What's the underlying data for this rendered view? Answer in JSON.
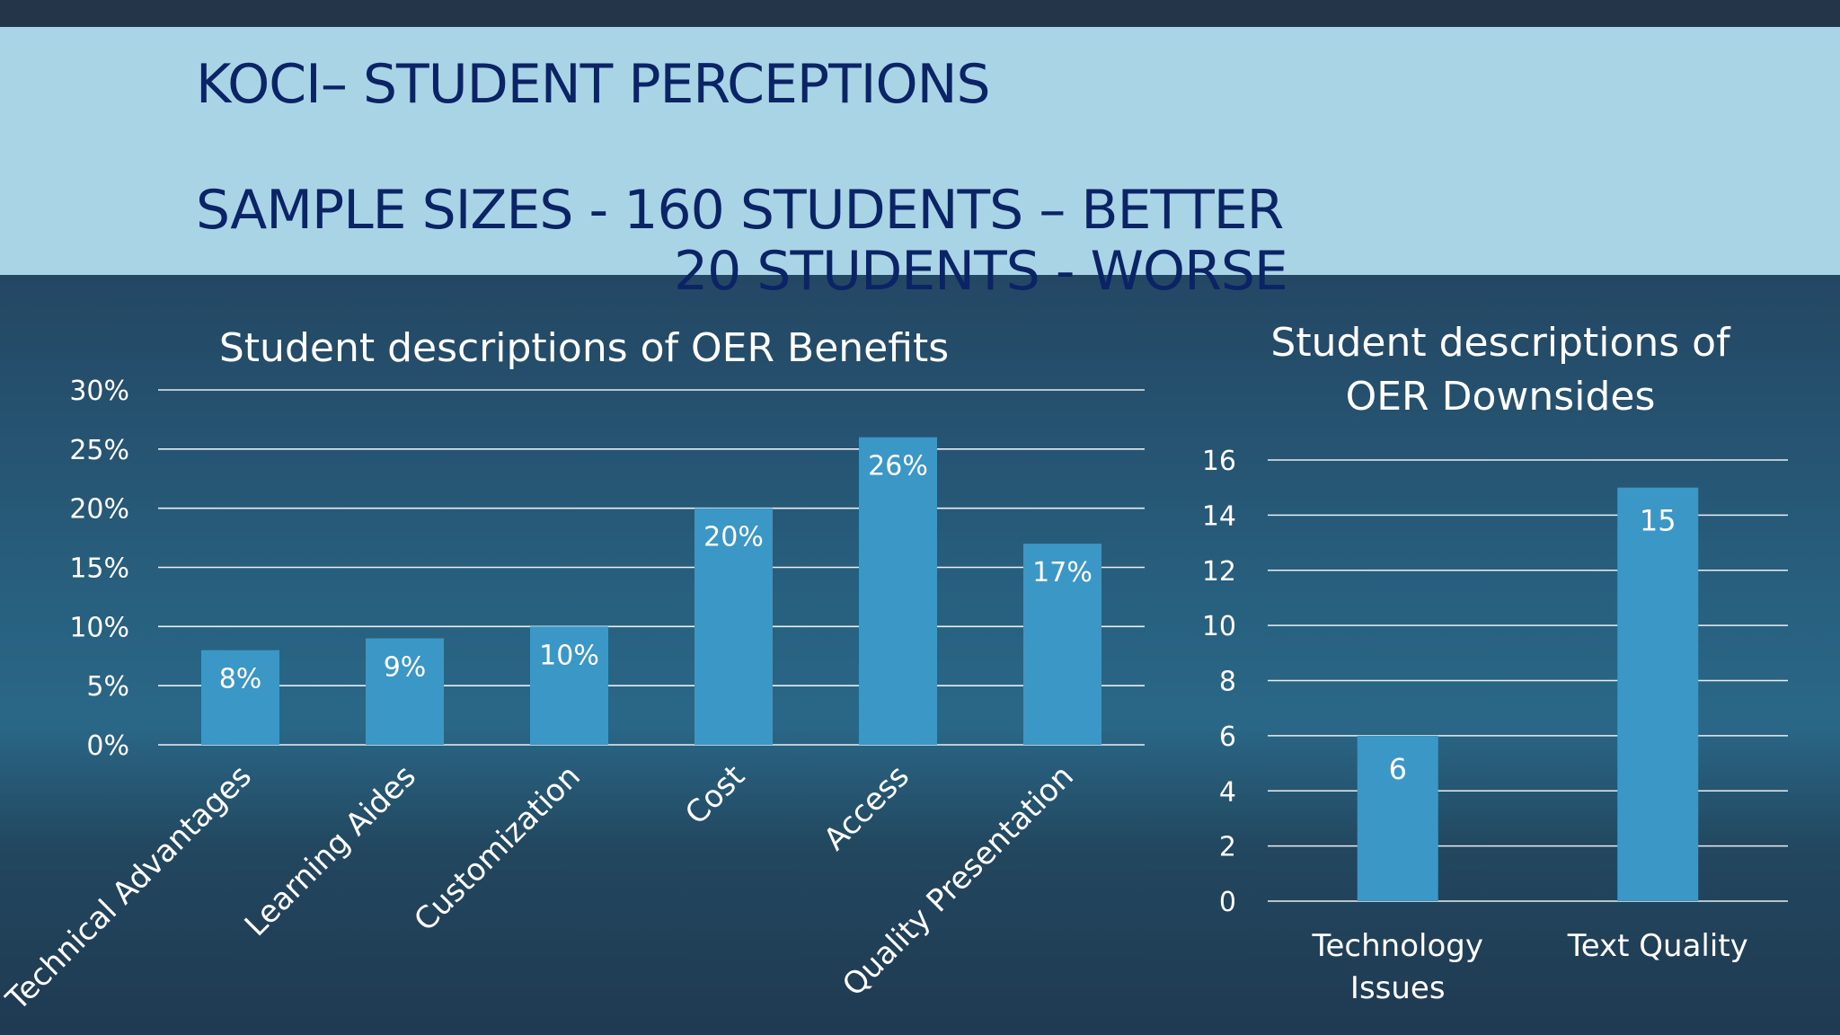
{
  "slide": {
    "title_line_1": "KOCI– STUDENT PERCEPTIONS",
    "title_line_2": "SAMPLE SIZES - 160 STUDENTS – BETTER",
    "title_line_3": "20 STUDENTS - WORSE",
    "colors": {
      "title_band": "#a9d4e6",
      "title_text": "#0b2466",
      "bar": "#3b97c6",
      "gridline": "#ffffff",
      "text": "#ffffff"
    }
  },
  "chart_data": [
    {
      "type": "bar",
      "title": "Student descriptions of OER Benefits",
      "categories": [
        "Technical Advantages",
        "Learning Aides",
        "Customization",
        "Cost",
        "Access",
        "Quality Presentation"
      ],
      "values": [
        8,
        9,
        10,
        20,
        26,
        17
      ],
      "data_labels": [
        "8%",
        "9%",
        "10%",
        "20%",
        "26%",
        "17%"
      ],
      "yticks": [
        "0%",
        "5%",
        "10%",
        "15%",
        "20%",
        "25%",
        "30%"
      ],
      "ylim": [
        0,
        30
      ],
      "grid": true,
      "legend": "none"
    },
    {
      "type": "bar",
      "title_lines": [
        "Student descriptions of",
        "OER Downsides"
      ],
      "categories": [
        "Technology Issues",
        "Text Quality"
      ],
      "category_lines": [
        [
          "Technology",
          "Issues"
        ],
        [
          "Text Quality"
        ]
      ],
      "values": [
        6,
        15
      ],
      "data_labels": [
        "6",
        "15"
      ],
      "yticks": [
        "0",
        "2",
        "4",
        "6",
        "8",
        "10",
        "12",
        "14",
        "16"
      ],
      "ylim": [
        0,
        16
      ],
      "grid": true,
      "legend": "none"
    }
  ]
}
